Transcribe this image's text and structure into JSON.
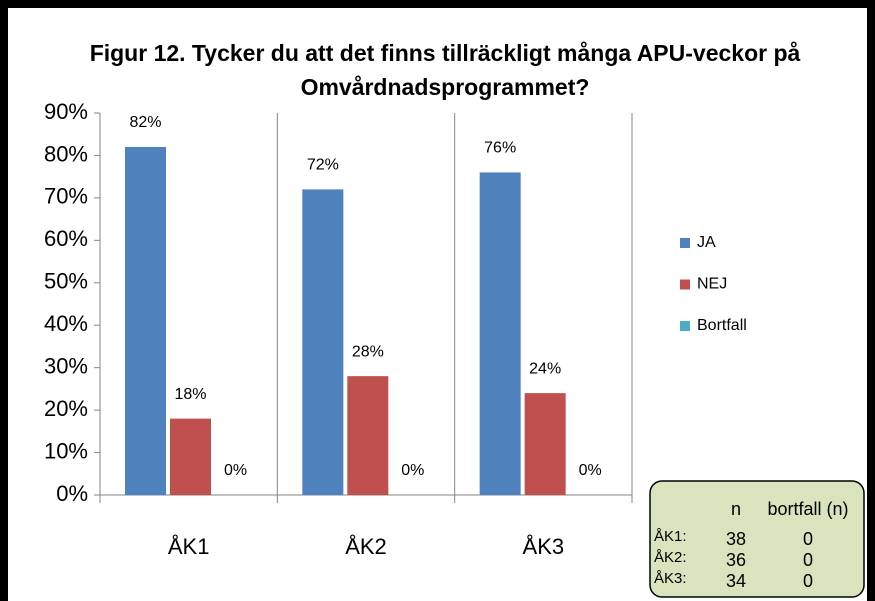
{
  "chart_data": {
    "type": "bar",
    "title": "Figur 12. Tycker du att det finns tillräckligt många APU-veckor på",
    "subtitle": "Omvårdnadsprogrammet?",
    "categories": [
      "ÅK1",
      "ÅK2",
      "ÅK3"
    ],
    "series": [
      {
        "name": "JA",
        "color": "#4f81bd",
        "values": [
          82,
          72,
          76
        ],
        "value_labels": [
          "82%",
          "72%",
          "76%"
        ]
      },
      {
        "name": "NEJ",
        "color": "#c0504d",
        "values": [
          18,
          28,
          24
        ],
        "value_labels": [
          "18%",
          "28%",
          "24%"
        ]
      },
      {
        "name": "Bortfall",
        "color": "#4bacc6",
        "values": [
          0,
          0,
          0
        ],
        "value_labels": [
          "0%",
          "0%",
          "0%"
        ]
      }
    ],
    "ylim": [
      0,
      90
    ],
    "yticks": [
      {
        "value": 0,
        "label": "0%"
      },
      {
        "value": 10,
        "label": "10%"
      },
      {
        "value": 20,
        "label": "20%"
      },
      {
        "value": 30,
        "label": "30%"
      },
      {
        "value": 40,
        "label": "40%"
      },
      {
        "value": 50,
        "label": "50%"
      },
      {
        "value": 60,
        "label": "60%"
      },
      {
        "value": 70,
        "label": "70%"
      },
      {
        "value": 80,
        "label": "80%"
      },
      {
        "value": 90,
        "label": "90%"
      }
    ],
    "legend": "right",
    "n_table": {
      "headers": [
        "n",
        "bortfall (n)"
      ],
      "rows": [
        [
          "ÅK1:",
          38,
          0
        ],
        [
          "ÅK2:",
          36,
          0
        ],
        [
          "ÅK3:",
          34,
          0
        ]
      ]
    }
  }
}
